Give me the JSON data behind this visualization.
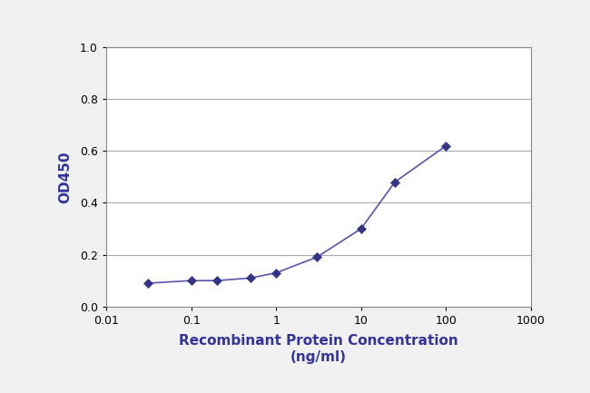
{
  "x_values": [
    0.031,
    0.1,
    0.2,
    0.5,
    1.0,
    3.0,
    10.0,
    25.0,
    100.0
  ],
  "y_values": [
    0.09,
    0.1,
    0.1,
    0.11,
    0.13,
    0.19,
    0.3,
    0.48,
    0.62
  ],
  "line_color": "#5555aa",
  "marker_color": "#333388",
  "marker_style": "D",
  "marker_size": 5,
  "line_width": 1.2,
  "xlabel_line1": "Recombinant Protein Concentration",
  "xlabel_line2": "(ng/ml)",
  "ylabel": "OD450",
  "xlim": [
    0.01,
    1000
  ],
  "ylim": [
    0.0,
    1.0
  ],
  "yticks": [
    0.0,
    0.2,
    0.4,
    0.6,
    0.8,
    1.0
  ],
  "xtick_values": [
    0.01,
    0.1,
    1,
    10,
    100,
    1000
  ],
  "figure_background": "#f0f0f0",
  "plot_background": "#ffffff",
  "grid_color": "#aaaaaa",
  "label_fontsize": 11,
  "tick_fontsize": 9,
  "ylabel_fontsize": 11
}
